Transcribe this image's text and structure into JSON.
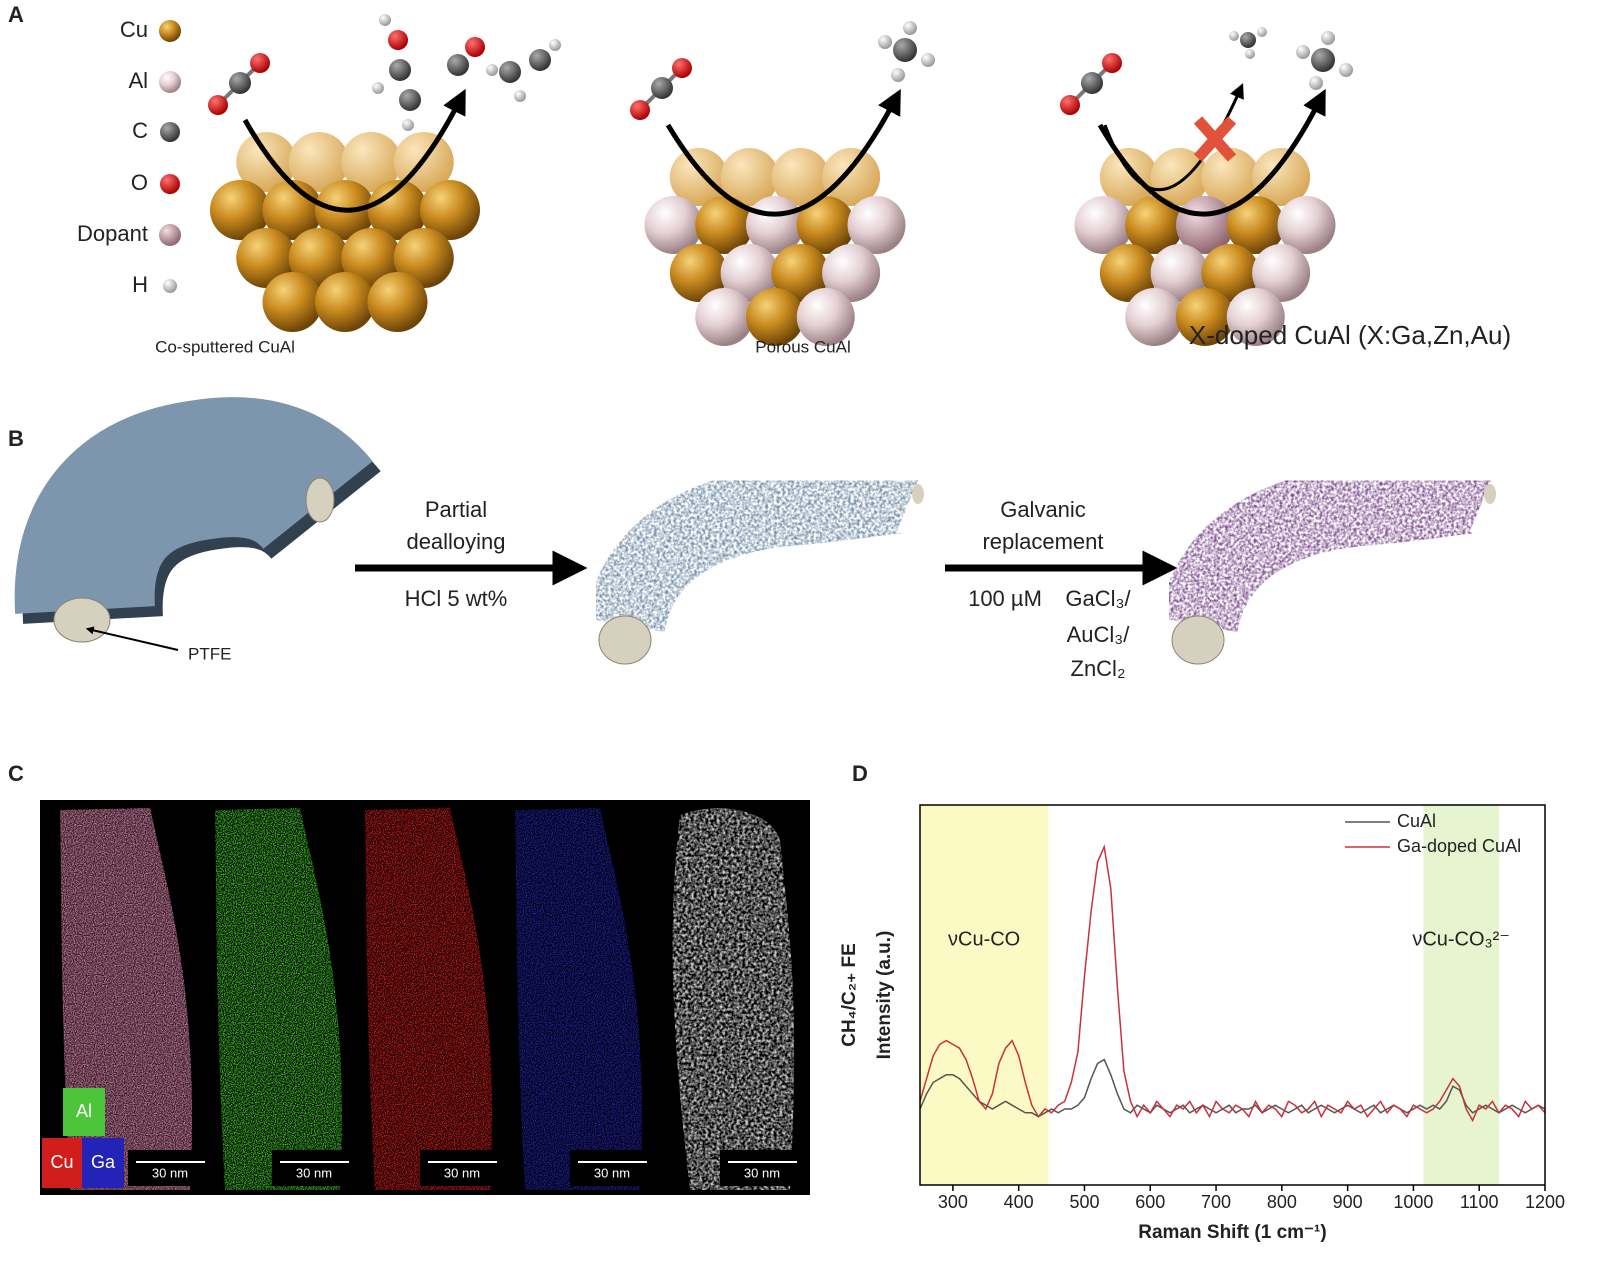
{
  "panel_labels": [
    "A",
    "B",
    "C",
    "D"
  ],
  "panel_a": {
    "legend": [
      "Cu",
      "Al",
      "C",
      "O",
      "Dopant",
      "H"
    ],
    "captions": [
      "Co-sputtered CuAl",
      "Porous CuAl",
      "X-doped CuAl (X:Ga,Zn,Au)"
    ]
  },
  "panel_b": {
    "ptfe_label": "PTFE",
    "arrow_1": {
      "above": [
        "Partial",
        "dealloying"
      ],
      "below": "HCl 5 wt%"
    },
    "arrow_2": {
      "above": [
        "Galvanic",
        "replacement"
      ],
      "concentration": "100 µM",
      "reagents": [
        "GaCl₃/",
        "AuCl₃/",
        "ZnCl₂"
      ]
    }
  },
  "panel_c": {
    "element_labels": [
      "Al",
      "Cu",
      "Ga"
    ],
    "scale_bars": [
      "30 nm",
      "30 nm",
      "30 nm",
      "30 nm",
      "30 nm"
    ]
  },
  "chart_data": {
    "type": "line",
    "xlabel": "Raman Shift (1 cm⁻¹)",
    "ylabel": "Intensity (a.u.)",
    "ylabel_extra": "CH₄/C₂₊ FE",
    "xlim": [
      250,
      1200
    ],
    "xticks": [
      300,
      400,
      500,
      600,
      700,
      800,
      900,
      1000,
      1100,
      1200
    ],
    "ylim": [
      0,
      100
    ],
    "highlight_ranges": [
      {
        "from": 250,
        "to": 445,
        "color": "#fbf9c4",
        "label": "νCu-CO"
      },
      {
        "from": 1015,
        "to": 1130,
        "color": "#e6f5cf",
        "label": "νCu-CO₃²⁻"
      }
    ],
    "legend_position": "upper right",
    "x": [
      250,
      260,
      270,
      280,
      290,
      300,
      310,
      320,
      330,
      340,
      350,
      360,
      370,
      380,
      390,
      400,
      410,
      420,
      430,
      440,
      450,
      460,
      470,
      480,
      490,
      500,
      510,
      520,
      530,
      540,
      550,
      560,
      570,
      580,
      590,
      600,
      610,
      620,
      630,
      640,
      650,
      660,
      670,
      680,
      690,
      700,
      710,
      720,
      730,
      740,
      750,
      760,
      770,
      780,
      790,
      800,
      810,
      820,
      830,
      840,
      850,
      860,
      870,
      880,
      890,
      900,
      910,
      920,
      930,
      940,
      950,
      960,
      970,
      980,
      990,
      1000,
      1010,
      1020,
      1030,
      1040,
      1050,
      1060,
      1070,
      1080,
      1090,
      1100,
      1110,
      1120,
      1130,
      1140,
      1150,
      1160,
      1170,
      1180,
      1190,
      1200
    ],
    "series": [
      {
        "name": "CuAl",
        "color": "#555555",
        "values": [
          20,
          24,
          27,
          28,
          29,
          29,
          28,
          26,
          24,
          22,
          21,
          20,
          21,
          22,
          21,
          20,
          19,
          19,
          18,
          19,
          20,
          19,
          20,
          20,
          21,
          23,
          28,
          32,
          33,
          29,
          24,
          20,
          19,
          21,
          20,
          19,
          21,
          20,
          19,
          20,
          21,
          19,
          20,
          21,
          20,
          19,
          20,
          21,
          19,
          20,
          20,
          21,
          19,
          20,
          21,
          20,
          19,
          20,
          21,
          19,
          20,
          21,
          20,
          19,
          20,
          21,
          20,
          19,
          20,
          21,
          19,
          20,
          21,
          20,
          19,
          20,
          21,
          20,
          21,
          20,
          22,
          26,
          25,
          21,
          19,
          20,
          21,
          20,
          19,
          20,
          21,
          20,
          19,
          20,
          21,
          20
        ]
      },
      {
        "name": "Ga-doped CuAl",
        "color": "#c8323c",
        "values": [
          22,
          28,
          34,
          37,
          38,
          37,
          36,
          33,
          28,
          22,
          20,
          24,
          32,
          36,
          38,
          34,
          27,
          21,
          18,
          20,
          19,
          21,
          22,
          27,
          35,
          55,
          72,
          85,
          89,
          78,
          52,
          30,
          22,
          18,
          21,
          19,
          22,
          20,
          18,
          21,
          20,
          22,
          19,
          21,
          18,
          22,
          20,
          19,
          21,
          20,
          18,
          22,
          19,
          21,
          20,
          18,
          22,
          21,
          19,
          20,
          22,
          18,
          21,
          20,
          19,
          22,
          20,
          21,
          18,
          20,
          22,
          19,
          21,
          20,
          18,
          21,
          20,
          19,
          20,
          22,
          25,
          28,
          26,
          20,
          17,
          21,
          20,
          22,
          19,
          21,
          20,
          18,
          22,
          20,
          21,
          19
        ]
      }
    ]
  }
}
